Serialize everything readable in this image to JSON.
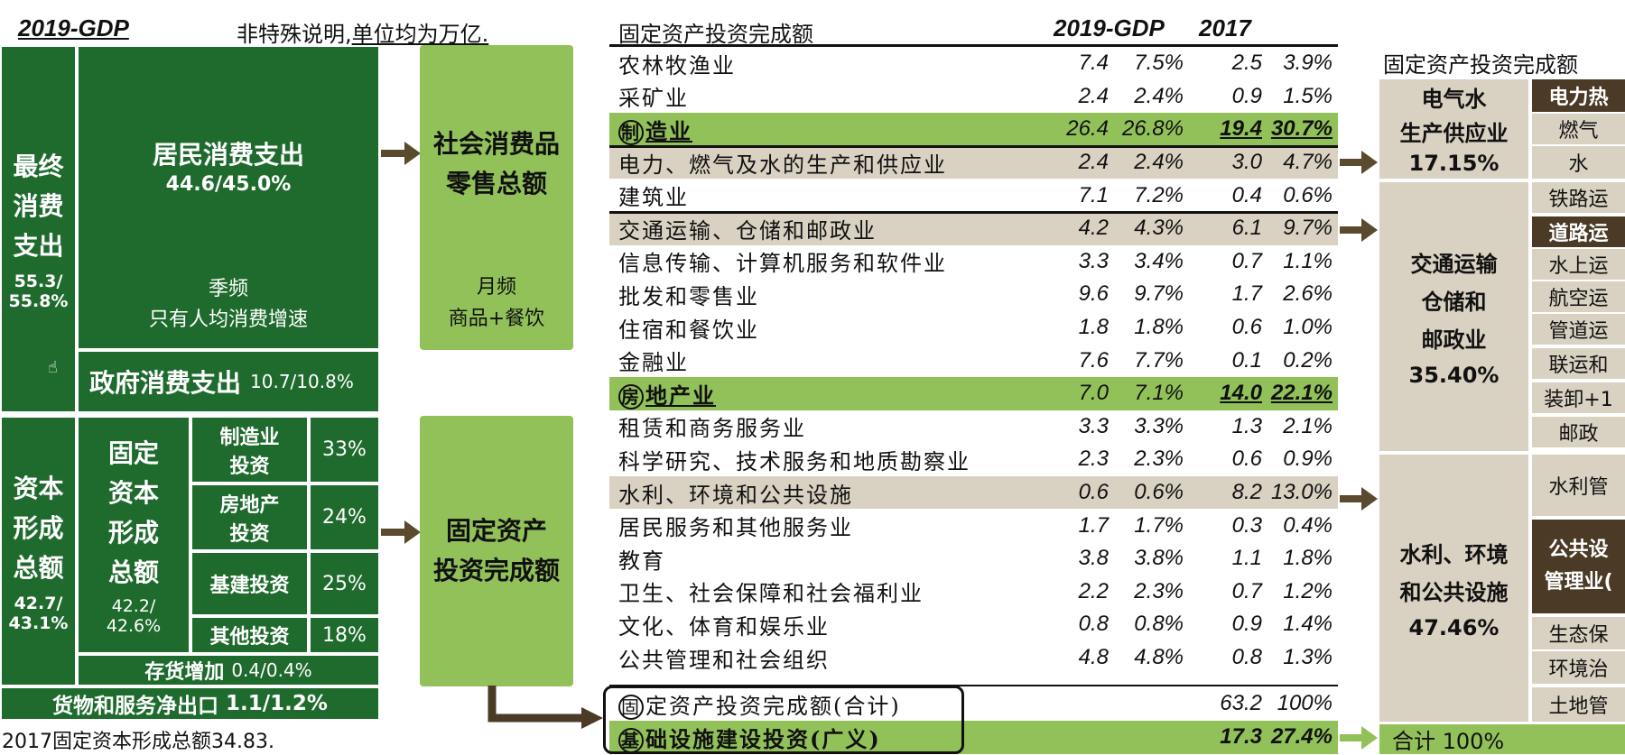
{
  "header": {
    "gdp_label": "2019-GDP",
    "note_prefix": "非特殊说明,",
    "note_unit": "单位均为万亿."
  },
  "left": {
    "final_consumption": {
      "label_lines": [
        "最终",
        "消费",
        "支出"
      ],
      "value": "55.3/\n55.8%"
    },
    "household": {
      "title": "居民消费支出",
      "value": "44.6/45.0%",
      "freq": "季频",
      "note": "只有人均消费增速"
    },
    "government": {
      "title": "政府消费支出",
      "value": "10.7/10.8%"
    },
    "capital_formation": {
      "label_lines": [
        "资本",
        "形成",
        "总额"
      ],
      "value": "42.7/\n43.1%"
    },
    "fixed_capital": {
      "label_lines": [
        "固定",
        "资本",
        "形成",
        "总额"
      ],
      "value": "42.2/\n42.6%"
    },
    "investments": [
      {
        "name": "制造业\n投资",
        "pct": "33%"
      },
      {
        "name": "房地产\n投资",
        "pct": "24%"
      },
      {
        "name": "基建投资",
        "pct": "25%"
      },
      {
        "name": "其他投资",
        "pct": "18%"
      }
    ],
    "inventory": {
      "title": "存货增加",
      "value": "0.4/0.4%"
    },
    "net_export": {
      "title": "货物和服务净出口",
      "value": "1.1/1.2%"
    },
    "footnote": "2017固定资本形成总额34.83."
  },
  "middle": {
    "retail": {
      "title": "社会消费品\n零售总额",
      "freq": "月频",
      "note": "商品+餐饮"
    },
    "fai": {
      "title": "固定资产\n投资完成额"
    }
  },
  "table": {
    "title": "固定资产投资完成额",
    "col_gdp": "2019-GDP",
    "col_2017": "2017",
    "rows": [
      {
        "name": "农林牧渔业",
        "v1": "7.4",
        "p1": "7.5%",
        "v2": "2.5",
        "p2": "3.9%",
        "style": "plain"
      },
      {
        "name": "采矿业",
        "v1": "2.4",
        "p1": "2.4%",
        "v2": "0.9",
        "p2": "1.5%",
        "style": "plain"
      },
      {
        "name": "造业",
        "circle": "制",
        "v1": "26.4",
        "p1": "26.8%",
        "v2": "19.4",
        "p2": "30.7%",
        "style": "hl"
      },
      {
        "name": "电力、燃气及水的生产和供应业",
        "v1": "2.4",
        "p1": "2.4%",
        "v2": "3.0",
        "p2": "4.7%",
        "style": "beige"
      },
      {
        "name": "建筑业",
        "v1": "7.1",
        "p1": "7.2%",
        "v2": "0.4",
        "p2": "0.6%",
        "style": "plain"
      },
      {
        "name": "交通运输、仓储和邮政业",
        "v1": "4.2",
        "p1": "4.3%",
        "v2": "6.1",
        "p2": "9.7%",
        "style": "beige"
      },
      {
        "name": "信息传输、计算机服务和软件业",
        "v1": "3.3",
        "p1": "3.4%",
        "v2": "0.7",
        "p2": "1.1%",
        "style": "plain"
      },
      {
        "name": "批发和零售业",
        "v1": "9.6",
        "p1": "9.7%",
        "v2": "1.7",
        "p2": "2.6%",
        "style": "plain"
      },
      {
        "name": "住宿和餐饮业",
        "v1": "1.8",
        "p1": "1.8%",
        "v2": "0.6",
        "p2": "1.0%",
        "style": "plain"
      },
      {
        "name": "金融业",
        "v1": "7.6",
        "p1": "7.7%",
        "v2": "0.1",
        "p2": "0.2%",
        "style": "plain"
      },
      {
        "name": "地产业",
        "circle": "房",
        "v1": "7.0",
        "p1": "7.1%",
        "v2": "14.0",
        "p2": "22.1%",
        "style": "hl"
      },
      {
        "name": "租赁和商务服务业",
        "v1": "3.3",
        "p1": "3.3%",
        "v2": "1.3",
        "p2": "2.1%",
        "style": "plain"
      },
      {
        "name": "科学研究、技术服务和地质勘察业",
        "v1": "2.3",
        "p1": "2.3%",
        "v2": "0.6",
        "p2": "0.9%",
        "style": "plain"
      },
      {
        "name": "水利、环境和公共设施",
        "v1": "0.6",
        "p1": "0.6%",
        "v2": "8.2",
        "p2": "13.0%",
        "style": "beige"
      },
      {
        "name": "居民服务和其他服务业",
        "v1": "1.7",
        "p1": "1.7%",
        "v2": "0.3",
        "p2": "0.4%",
        "style": "plain"
      },
      {
        "name": "教育",
        "v1": "3.8",
        "p1": "3.8%",
        "v2": "1.1",
        "p2": "1.8%",
        "style": "plain"
      },
      {
        "name": "卫生、社会保障和社会福利业",
        "v1": "2.2",
        "p1": "2.3%",
        "v2": "0.7",
        "p2": "1.2%",
        "style": "plain"
      },
      {
        "name": "文化、体育和娱乐业",
        "v1": "0.8",
        "p1": "0.8%",
        "v2": "0.9",
        "p2": "1.4%",
        "style": "plain"
      },
      {
        "name": "公共管理和社会组织",
        "v1": "4.8",
        "p1": "4.8%",
        "v2": "0.8",
        "p2": "1.3%",
        "style": "plain"
      }
    ],
    "total": {
      "circle": "固",
      "name": "定资产投资完成额(合计)",
      "v2": "63.2",
      "p2": "100%"
    },
    "infra": {
      "circle": "基",
      "name": "础设施建设投资(广义)",
      "v2": "17.3",
      "p2": "27.4%"
    }
  },
  "right": {
    "title": "固定资产投资完成额",
    "electric": {
      "name": "电气水\n生产供应业",
      "pct": "17.15%",
      "subs": [
        "电力热",
        "燃气",
        "水"
      ]
    },
    "transport": {
      "name": "交通运输\n仓储和\n邮政业",
      "pct": "35.40%",
      "subs": [
        "铁路运",
        "道路运",
        "水上运",
        "航空运",
        "管道运",
        "联运和",
        "装卸+1",
        "邮政"
      ]
    },
    "water": {
      "name": "水利、环境\n和公共设施",
      "pct": "47.46%",
      "subs": [
        "水利管",
        "公共设\n管理业(",
        "生态保",
        "环境治",
        "土地管"
      ]
    },
    "total": "合计 100%"
  }
}
